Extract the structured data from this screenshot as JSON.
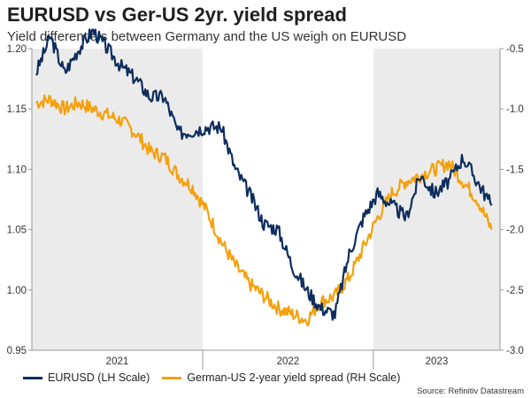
{
  "title": "EURUSD vs Ger-US 2yr. yield spread",
  "subtitle": "Yield differentials between Germany and the US weigh on EURUSD",
  "source": "Source: Refinitiv Datastream",
  "colors": {
    "eurusd": "#0d2d5e",
    "spread": "#f5a00c",
    "shade": "#ebebeb"
  },
  "chart_data": {
    "type": "line",
    "title": "EURUSD vs Ger-US 2yr. yield spread",
    "x_label_values": [
      "2021",
      "2022",
      "2023"
    ],
    "left_axis": {
      "ylim": [
        0.95,
        1.2
      ],
      "ticks": [
        1.2,
        1.15,
        1.1,
        1.05,
        1.0,
        0.95
      ],
      "tick_labels": [
        "1.20",
        "1.15",
        "1.10",
        "1.05",
        "1.00",
        "0.95"
      ]
    },
    "right_axis": {
      "ylim": [
        -3.0,
        -0.5
      ],
      "ticks": [
        -0.5,
        -1.0,
        -1.5,
        -2.0,
        -2.5,
        -3.0
      ],
      "tick_labels": [
        "-0.5",
        "-1.0",
        "-1.5",
        "-2.0",
        "-2.5",
        "-3.0"
      ]
    },
    "shaded_periods": [
      "2021",
      "2023"
    ],
    "grid": false,
    "legend_position": "bottom-left",
    "series": [
      {
        "name": "EURUSD (LH Scale)",
        "axis": "left",
        "x": [
          "2021-01",
          "2021-02",
          "2021-03",
          "2021-04",
          "2021-05",
          "2021-06",
          "2021-07",
          "2021-08",
          "2021-09",
          "2021-10",
          "2021-11",
          "2021-12",
          "2022-01",
          "2022-02",
          "2022-03",
          "2022-04",
          "2022-05",
          "2022-06",
          "2022-07",
          "2022-08",
          "2022-09",
          "2022-10",
          "2022-11",
          "2022-12",
          "2023-01",
          "2023-02",
          "2023-03",
          "2023-04",
          "2023-05",
          "2023-06",
          "2023-07",
          "2023-08",
          "2023-09"
        ],
        "values": [
          1.18,
          1.21,
          1.18,
          1.2,
          1.215,
          1.2,
          1.185,
          1.175,
          1.16,
          1.16,
          1.13,
          1.132,
          1.135,
          1.135,
          1.1,
          1.08,
          1.055,
          1.05,
          1.02,
          1.0,
          0.985,
          0.98,
          1.03,
          1.06,
          1.08,
          1.07,
          1.06,
          1.095,
          1.08,
          1.09,
          1.11,
          1.09,
          1.07
        ]
      },
      {
        "name": "German-US 2-year yield spread (RH Scale)",
        "axis": "right",
        "x": [
          "2021-01",
          "2021-02",
          "2021-03",
          "2021-04",
          "2021-05",
          "2021-06",
          "2021-07",
          "2021-08",
          "2021-09",
          "2021-10",
          "2021-11",
          "2021-12",
          "2022-01",
          "2022-02",
          "2022-03",
          "2022-04",
          "2022-05",
          "2022-06",
          "2022-07",
          "2022-08",
          "2022-09",
          "2022-10",
          "2022-11",
          "2022-12",
          "2023-01",
          "2023-02",
          "2023-03",
          "2023-04",
          "2023-05",
          "2023-06",
          "2023-07",
          "2023-08",
          "2023-09"
        ],
        "values": [
          -0.95,
          -0.92,
          -1.0,
          -0.95,
          -1.0,
          -1.05,
          -1.1,
          -1.2,
          -1.35,
          -1.4,
          -1.55,
          -1.65,
          -1.85,
          -2.1,
          -2.3,
          -2.45,
          -2.55,
          -2.65,
          -2.7,
          -2.75,
          -2.6,
          -2.55,
          -2.4,
          -2.15,
          -1.9,
          -1.7,
          -1.6,
          -1.55,
          -1.5,
          -1.45,
          -1.6,
          -1.75,
          -2.0
        ]
      }
    ]
  }
}
